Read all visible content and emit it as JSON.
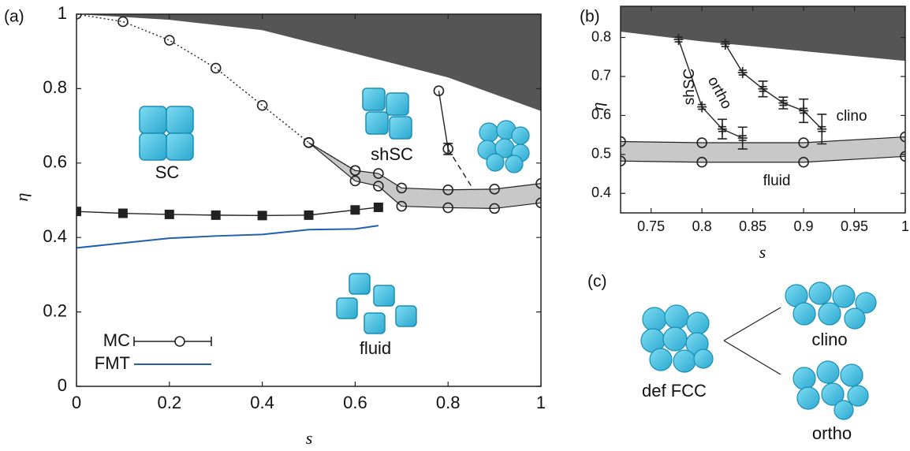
{
  "chart_data": [
    {
      "type": "line",
      "panel_label": "(a)",
      "xlabel": "s",
      "ylabel": "η",
      "xlim": [
        0,
        1
      ],
      "ylim": [
        0,
        1
      ],
      "xticks": [
        0,
        0.2,
        0.4,
        0.6,
        0.8,
        1
      ],
      "yticks": [
        0,
        0.2,
        0.4,
        0.6,
        0.8,
        1
      ],
      "annotations": [
        "SC",
        "shSC",
        "fluid"
      ],
      "series": [
        {
          "kind": "area_above",
          "color": "#555555",
          "x": [
            0,
            0.2,
            0.4,
            0.6,
            0.8,
            1
          ],
          "values": [
            1,
            0.985,
            0.957,
            0.894,
            0.83,
            0.74
          ]
        },
        {
          "kind": "band",
          "color": "#c8c8c8",
          "marker": "circle",
          "x": [
            0.5,
            0.6,
            0.65,
            0.7,
            0.8,
            0.9,
            1
          ],
          "high": [
            0.655,
            0.58,
            0.572,
            0.533,
            0.528,
            0.53,
            0.545
          ],
          "low": [
            0.655,
            0.552,
            0.538,
            0.484,
            0.48,
            0.478,
            0.493
          ]
        },
        {
          "name": "MC",
          "color": "#222222",
          "style": "dotted",
          "marker": "circle",
          "x": [
            0,
            0.1,
            0.2,
            0.3,
            0.4,
            0.5,
            0.6
          ],
          "values": [
            1,
            0.98,
            0.93,
            0.855,
            0.755,
            0.655,
            0.58
          ]
        },
        {
          "color": "#222222",
          "style": "solid",
          "marker": "circle",
          "x": [
            0.78,
            0.8
          ],
          "values": [
            0.794,
            0.638
          ],
          "errors": [
            null,
            0.015
          ]
        },
        {
          "color": "#222222",
          "style": "dashed",
          "marker": "none",
          "x": [
            0.8,
            0.85
          ],
          "values": [
            0.638,
            0.538
          ]
        },
        {
          "color": "#222222",
          "style": "solid",
          "marker": "square",
          "x": [
            0,
            0.1,
            0.2,
            0.3,
            0.4,
            0.5,
            0.6,
            0.65
          ],
          "values": [
            0.47,
            0.465,
            0.462,
            0.46,
            0.459,
            0.46,
            0.474,
            0.481
          ]
        },
        {
          "name": "FMT",
          "color": "#1f5fae",
          "style": "solid",
          "marker": "none",
          "x": [
            0,
            0.1,
            0.2,
            0.3,
            0.4,
            0.5,
            0.6,
            0.65
          ],
          "values": [
            0.372,
            0.385,
            0.398,
            0.404,
            0.408,
            0.421,
            0.423,
            0.432
          ]
        }
      ]
    },
    {
      "type": "line",
      "panel_label": "(b)",
      "xlabel": "s",
      "ylabel": "η",
      "xlim": [
        0.72,
        1
      ],
      "ylim": [
        0.35,
        0.88
      ],
      "xticks": [
        0.75,
        0.8,
        0.85,
        0.9,
        0.95,
        1
      ],
      "yticks": [
        0.4,
        0.5,
        0.6,
        0.7,
        0.8
      ],
      "annotations": [
        "shSC",
        "ortho",
        "clino",
        "fluid"
      ],
      "series": [
        {
          "kind": "area_above",
          "color": "#555555",
          "x": [
            0.72,
            0.8,
            0.9,
            1
          ],
          "values": [
            0.815,
            0.79,
            0.765,
            0.74
          ]
        },
        {
          "kind": "band",
          "color": "#c8c8c8",
          "marker": "circle",
          "x": [
            0.72,
            0.8,
            0.9,
            1
          ],
          "high": [
            0.533,
            0.53,
            0.53,
            0.545
          ],
          "low": [
            0.483,
            0.48,
            0.48,
            0.495
          ]
        },
        {
          "color": "#222222",
          "style": "solid",
          "marker": "plus",
          "x": [
            0.777,
            0.8,
            0.82,
            0.84
          ],
          "values": [
            0.795,
            0.622,
            0.565,
            0.542
          ],
          "errors": [
            null,
            null,
            0.025,
            0.028
          ]
        },
        {
          "color": "#222222",
          "style": "solid",
          "marker": "plus",
          "x": [
            0.823,
            0.84,
            0.86,
            0.88,
            0.9,
            0.918
          ],
          "values": [
            0.783,
            0.71,
            0.668,
            0.632,
            0.612,
            0.565
          ],
          "errors": [
            null,
            null,
            0.02,
            0.015,
            0.03,
            0.038
          ]
        }
      ]
    }
  ],
  "panel_c": {
    "label": "(c)",
    "nodes": [
      "def FCC",
      "clino",
      "ortho"
    ]
  }
}
